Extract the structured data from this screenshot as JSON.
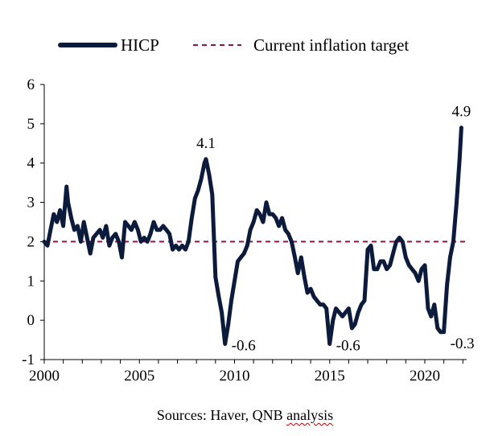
{
  "source": {
    "prefix": "Sources: Haver, QNB ",
    "marked_word": "analysis"
  },
  "chart_data": {
    "type": "line",
    "title": "",
    "xlabel": "",
    "ylabel": "",
    "xlim": [
      2000,
      2022.2
    ],
    "ylim": [
      -1,
      6
    ],
    "yticks": [
      -1,
      0,
      1,
      2,
      3,
      4,
      5,
      6
    ],
    "xticks": [
      2000,
      2005,
      2010,
      2015,
      2020
    ],
    "grid": false,
    "legend_position": "top",
    "series": [
      {
        "name": "HICP",
        "color": "#0c1a3c",
        "x": [
          2000.0,
          2000.17,
          2000.33,
          2000.5,
          2000.67,
          2000.83,
          2001.0,
          2001.17,
          2001.25,
          2001.42,
          2001.58,
          2001.75,
          2001.92,
          2002.08,
          2002.25,
          2002.42,
          2002.58,
          2002.75,
          2002.92,
          2003.08,
          2003.25,
          2003.42,
          2003.58,
          2003.75,
          2003.92,
          2004.08,
          2004.25,
          2004.42,
          2004.58,
          2004.75,
          2004.92,
          2005.08,
          2005.25,
          2005.42,
          2005.58,
          2005.75,
          2005.92,
          2006.08,
          2006.25,
          2006.42,
          2006.58,
          2006.75,
          2006.92,
          2007.08,
          2007.25,
          2007.42,
          2007.58,
          2007.75,
          2007.92,
          2008.08,
          2008.25,
          2008.42,
          2008.5,
          2008.67,
          2008.83,
          2009.0,
          2009.17,
          2009.33,
          2009.5,
          2009.67,
          2009.83,
          2010.0,
          2010.17,
          2010.33,
          2010.5,
          2010.67,
          2010.83,
          2011.0,
          2011.17,
          2011.33,
          2011.5,
          2011.67,
          2011.83,
          2012.0,
          2012.17,
          2012.33,
          2012.5,
          2012.67,
          2012.83,
          2013.0,
          2013.17,
          2013.33,
          2013.5,
          2013.67,
          2013.83,
          2014.0,
          2014.17,
          2014.33,
          2014.5,
          2014.67,
          2014.83,
          2015.0,
          2015.17,
          2015.33,
          2015.5,
          2015.67,
          2015.83,
          2016.0,
          2016.17,
          2016.33,
          2016.5,
          2016.67,
          2016.83,
          2017.0,
          2017.17,
          2017.33,
          2017.5,
          2017.67,
          2017.83,
          2018.0,
          2018.17,
          2018.33,
          2018.5,
          2018.67,
          2018.83,
          2019.0,
          2019.17,
          2019.33,
          2019.5,
          2019.67,
          2019.83,
          2020.0,
          2020.17,
          2020.33,
          2020.5,
          2020.67,
          2020.83,
          2021.0,
          2021.17,
          2021.33,
          2021.5,
          2021.67,
          2021.83,
          2021.92
        ],
        "values": [
          2.0,
          1.9,
          2.3,
          2.7,
          2.5,
          2.8,
          2.4,
          3.4,
          3.0,
          2.6,
          2.3,
          2.4,
          2.0,
          2.5,
          2.1,
          1.7,
          2.1,
          2.2,
          2.3,
          2.1,
          2.4,
          1.9,
          2.1,
          2.2,
          2.0,
          1.6,
          2.5,
          2.4,
          2.3,
          2.5,
          2.3,
          2.0,
          2.1,
          2.0,
          2.2,
          2.5,
          2.3,
          2.3,
          2.4,
          2.3,
          2.2,
          1.8,
          1.9,
          1.8,
          1.9,
          1.8,
          2.0,
          2.6,
          3.1,
          3.3,
          3.6,
          4.0,
          4.1,
          3.7,
          3.2,
          1.1,
          0.6,
          0.2,
          -0.6,
          -0.1,
          0.5,
          1.0,
          1.5,
          1.6,
          1.7,
          1.9,
          2.3,
          2.5,
          2.8,
          2.7,
          2.5,
          3.0,
          2.7,
          2.7,
          2.6,
          2.4,
          2.6,
          2.3,
          2.2,
          2.0,
          1.6,
          1.2,
          1.6,
          1.1,
          0.7,
          0.8,
          0.6,
          0.5,
          0.4,
          0.4,
          0.3,
          -0.6,
          0.0,
          0.3,
          0.2,
          0.1,
          0.2,
          0.3,
          -0.2,
          -0.1,
          0.2,
          0.4,
          0.5,
          1.8,
          1.9,
          1.3,
          1.3,
          1.5,
          1.5,
          1.3,
          1.4,
          1.7,
          2.0,
          2.1,
          2.0,
          1.6,
          1.4,
          1.3,
          1.2,
          1.0,
          1.3,
          1.4,
          0.3,
          0.1,
          0.4,
          -0.2,
          -0.3,
          -0.3,
          0.9,
          1.6,
          2.0,
          3.0,
          4.1,
          4.9
        ],
        "annotations": [
          {
            "x": 2008.5,
            "y": 4.1,
            "text": "4.1",
            "position": "above"
          },
          {
            "x": 2009.5,
            "y": -0.6,
            "text": "-0.6",
            "position": "right"
          },
          {
            "x": 2015.0,
            "y": -0.6,
            "text": "-0.6",
            "position": "right"
          },
          {
            "x": 2020.83,
            "y": -0.3,
            "text": "-0.3",
            "position": "below-right"
          },
          {
            "x": 2021.92,
            "y": 4.9,
            "text": "4.9",
            "position": "above"
          }
        ]
      },
      {
        "name": "Current inflation target",
        "color": "#8c1450",
        "style": "dashed",
        "x": [
          2000,
          2022.2
        ],
        "values": [
          2,
          2
        ]
      }
    ]
  }
}
